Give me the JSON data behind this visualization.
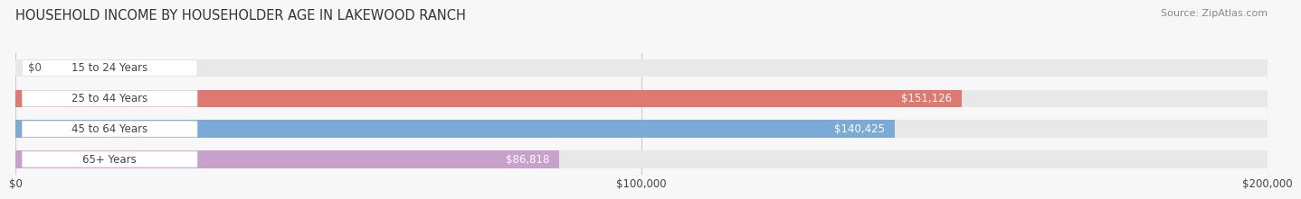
{
  "title": "HOUSEHOLD INCOME BY HOUSEHOLDER AGE IN LAKEWOOD RANCH",
  "source": "Source: ZipAtlas.com",
  "categories": [
    "15 to 24 Years",
    "25 to 44 Years",
    "45 to 64 Years",
    "65+ Years"
  ],
  "values": [
    0,
    151126,
    140425,
    86818
  ],
  "bar_colors": [
    "#f0c898",
    "#e07872",
    "#7aaad8",
    "#c8a0cc"
  ],
  "value_labels": [
    "$0",
    "$151,126",
    "$140,425",
    "$86,818"
  ],
  "xlim": [
    0,
    200000
  ],
  "xticks": [
    0,
    100000,
    200000
  ],
  "xtick_labels": [
    "$0",
    "$100,000",
    "$200,000"
  ],
  "background_color": "#f7f7f7",
  "bar_bg_color": "#e8e8e8",
  "title_fontsize": 10.5,
  "source_fontsize": 8,
  "label_fontsize": 8.5,
  "value_fontsize": 8.5,
  "bar_height": 0.58,
  "text_color": "#444444",
  "value_color_light": "#ffffff",
  "value_color_dark": "#555555",
  "grid_color": "#cccccc"
}
